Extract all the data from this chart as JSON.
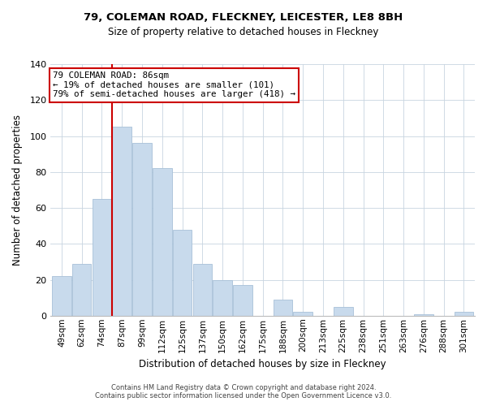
{
  "title": "79, COLEMAN ROAD, FLECKNEY, LEICESTER, LE8 8BH",
  "subtitle": "Size of property relative to detached houses in Fleckney",
  "xlabel": "Distribution of detached houses by size in Fleckney",
  "ylabel": "Number of detached properties",
  "bar_color": "#c8daec",
  "bar_edge_color": "#a8c0d8",
  "categories": [
    "49sqm",
    "62sqm",
    "74sqm",
    "87sqm",
    "99sqm",
    "112sqm",
    "125sqm",
    "137sqm",
    "150sqm",
    "162sqm",
    "175sqm",
    "188sqm",
    "200sqm",
    "213sqm",
    "225sqm",
    "238sqm",
    "251sqm",
    "263sqm",
    "276sqm",
    "288sqm",
    "301sqm"
  ],
  "values": [
    22,
    29,
    65,
    105,
    96,
    82,
    48,
    29,
    20,
    17,
    0,
    9,
    2,
    0,
    5,
    0,
    0,
    0,
    1,
    0,
    2
  ],
  "ylim": [
    0,
    140
  ],
  "yticks": [
    0,
    20,
    40,
    60,
    80,
    100,
    120,
    140
  ],
  "vline_color": "#cc0000",
  "annotation_line1": "79 COLEMAN ROAD: 86sqm",
  "annotation_line2": "← 19% of detached houses are smaller (101)",
  "annotation_line3": "79% of semi-detached houses are larger (418) →",
  "annotation_box_color": "#ffffff",
  "annotation_box_edge": "#cc0000",
  "footer_line1": "Contains HM Land Registry data © Crown copyright and database right 2024.",
  "footer_line2": "Contains public sector information licensed under the Open Government Licence v3.0.",
  "background_color": "#ffffff",
  "grid_color": "#c8d4e0"
}
